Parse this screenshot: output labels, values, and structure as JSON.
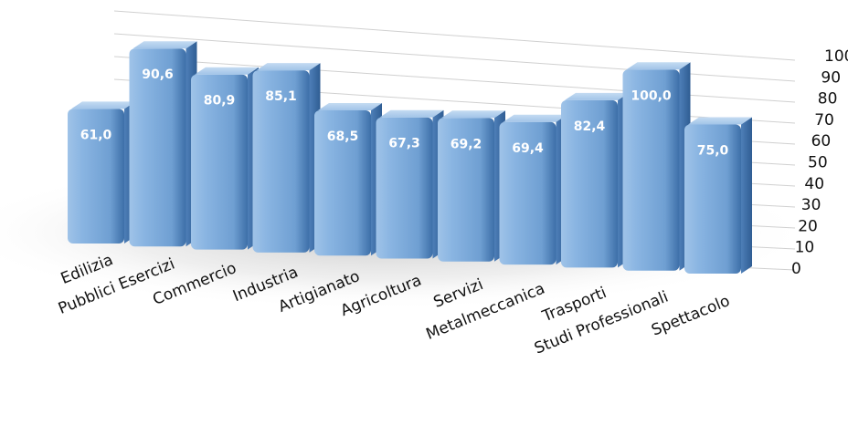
{
  "chart_data": {
    "type": "bar",
    "categories": [
      "Edilizia",
      "Pubblici Esercizi",
      "Commercio",
      "Industria",
      "Artigianato",
      "Agricoltura",
      "Servizi",
      "Metalmeccanica",
      "Trasporti",
      "Studi Professionali",
      "Spettacolo"
    ],
    "values": [
      61.0,
      90.6,
      80.9,
      85.1,
      68.5,
      67.3,
      69.2,
      69.4,
      82.4,
      100.0,
      75.0
    ],
    "value_labels": [
      "61,0",
      "90,6",
      "80,9",
      "85,1",
      "68,5",
      "67,3",
      "69,2",
      "69,4",
      "82,4",
      "100,0",
      "75,0"
    ],
    "ylim": [
      0,
      100
    ],
    "y_ticks": [
      "0",
      "10",
      "20",
      "30",
      "40",
      "50",
      "60",
      "70",
      "80",
      "90",
      "100"
    ],
    "y_axis_position": "right",
    "grid": true,
    "legend": "none",
    "bar_color": "#7aa8d9"
  }
}
